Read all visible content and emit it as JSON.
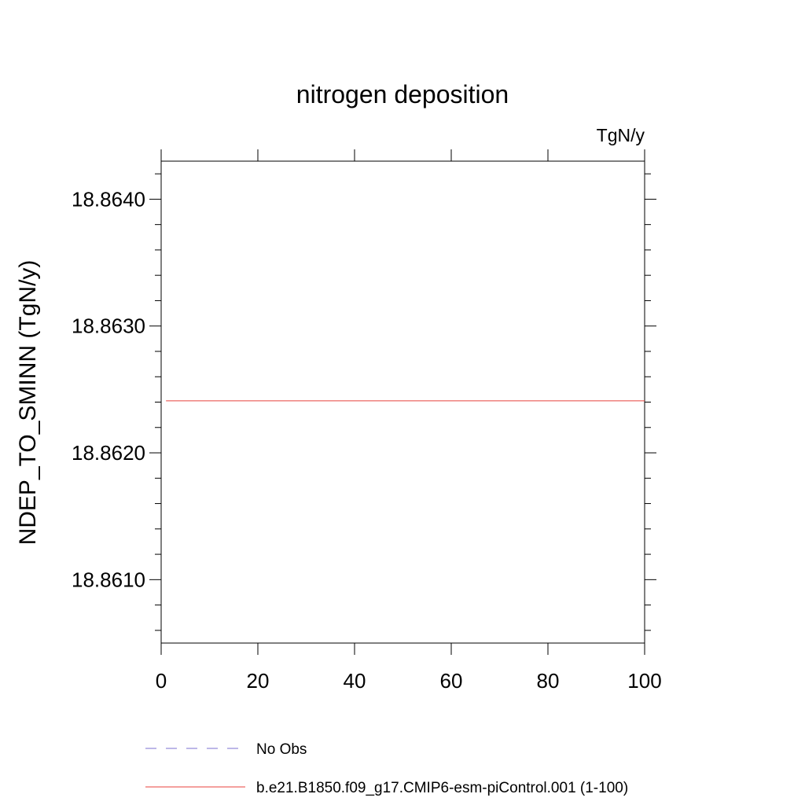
{
  "chart_data": {
    "type": "line",
    "title": "nitrogen deposition",
    "units": "TgN/y",
    "ylabel": "NDEP_TO_SMINN  (TgN/y)",
    "xlabel": "",
    "xlim": [
      0,
      100
    ],
    "ylim": [
      18.8605,
      18.8643
    ],
    "x_ticks": [
      0,
      20,
      40,
      60,
      80,
      100
    ],
    "x_tick_labels": [
      "0",
      "20",
      "40",
      "60",
      "80",
      "100"
    ],
    "y_ticks": [
      18.861,
      18.862,
      18.863,
      18.864
    ],
    "y_tick_labels": [
      "18.8610",
      "18.8620",
      "18.8630",
      "18.8640"
    ],
    "grid": false,
    "legend_position": "bottom",
    "series": [
      {
        "name": "No Obs",
        "color": "#7b6fd0",
        "dash": "dashed",
        "x": [],
        "values": []
      },
      {
        "name": "b.e21.B1850.f09_g17.CMIP6-esm-piControl.001 (1-100)",
        "color": "#e8413c",
        "dash": "solid",
        "x": [
          1,
          100
        ],
        "values": [
          18.86241,
          18.86241
        ]
      }
    ]
  }
}
